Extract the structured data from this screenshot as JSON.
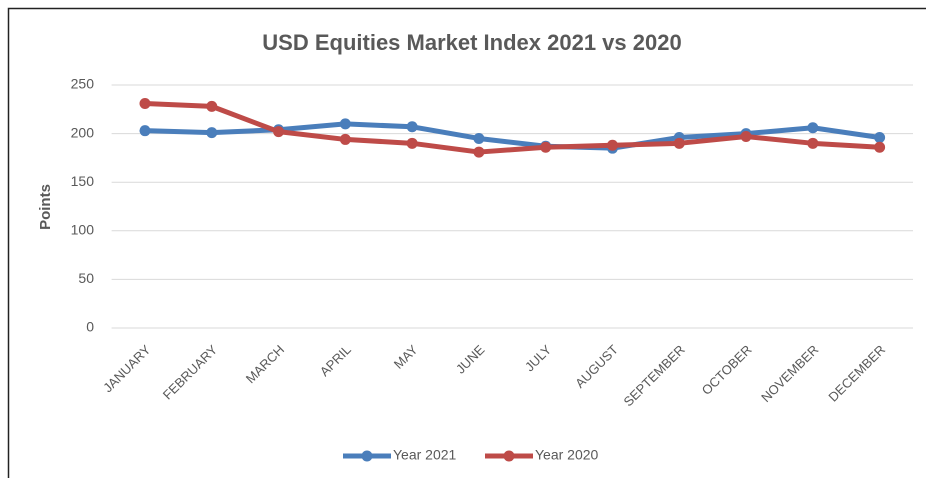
{
  "chart_data": {
    "type": "line",
    "title": "USD Equities Market Index 2021 vs 2020",
    "ylabel": "Points",
    "categories": [
      "JANUARY",
      "FEBRUARY",
      "MARCH",
      "APRIL",
      "MAY",
      "JUNE",
      "JULY",
      "AUGUST",
      "SEPTEMBER",
      "OCTOBER",
      "NOVEMBER",
      "DECEMBER"
    ],
    "series": [
      {
        "name": "Year 2021",
        "color": "#4a7ebb",
        "values": [
          203,
          201,
          204,
          210,
          207,
          195,
          187,
          185,
          196,
          200,
          206,
          196
        ]
      },
      {
        "name": "Year 2020",
        "color": "#be4b48",
        "values": [
          231,
          228,
          202,
          194,
          190,
          181,
          186,
          188,
          190,
          197,
          190,
          186
        ]
      }
    ],
    "ylim": [
      0,
      250
    ],
    "yticks": [
      0,
      50,
      100,
      150,
      200,
      250
    ],
    "grid": true,
    "legend": "bottom"
  }
}
